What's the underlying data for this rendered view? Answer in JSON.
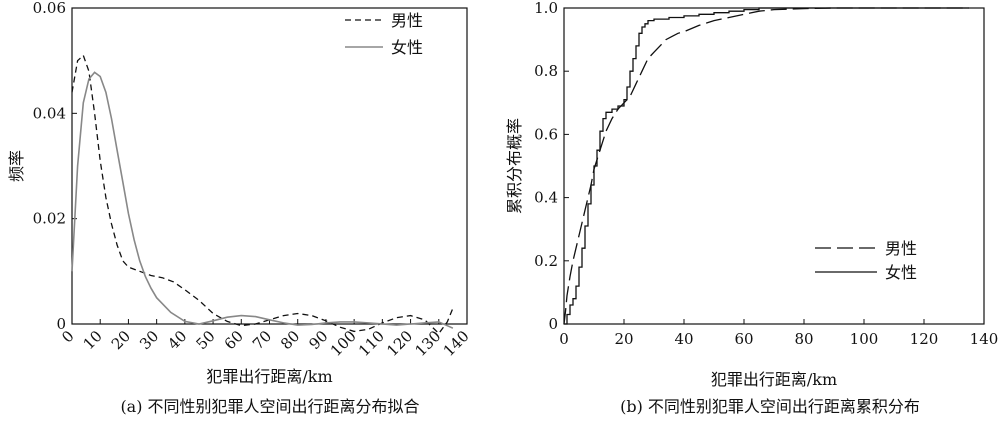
{
  "chart_data": [
    {
      "type": "line",
      "caption": "(a) 不同性别犯罪人空间出行距离分布拟合",
      "xlabel": "犯罪出行距离/km",
      "ylabel": "频率",
      "xlim": [
        0,
        140
      ],
      "ylim": [
        0,
        0.06
      ],
      "x_ticks": [
        "0",
        "10",
        "20",
        "30",
        "40",
        "50",
        "60",
        "70",
        "80",
        "90",
        "100",
        "110",
        "120",
        "130",
        "140"
      ],
      "y_ticks": [
        "0",
        "0.02",
        "0.04",
        "0.06"
      ],
      "grid": false,
      "legend_position": "top-right",
      "series": [
        {
          "name": "男性",
          "style": "dashed",
          "color": "#111111",
          "points": [
            [
              0,
              0.044
            ],
            [
              2,
              0.05
            ],
            [
              4,
              0.051
            ],
            [
              6,
              0.048
            ],
            [
              8,
              0.04
            ],
            [
              10,
              0.031
            ],
            [
              12,
              0.024
            ],
            [
              14,
              0.019
            ],
            [
              16,
              0.015
            ],
            [
              18,
              0.012
            ],
            [
              20,
              0.0108
            ],
            [
              24,
              0.01
            ],
            [
              28,
              0.0092
            ],
            [
              32,
              0.0088
            ],
            [
              36,
              0.008
            ],
            [
              40,
              0.0065
            ],
            [
              45,
              0.0045
            ],
            [
              50,
              0.002
            ],
            [
              55,
              0.0005
            ],
            [
              60,
              -0.0003
            ],
            [
              65,
              0.0
            ],
            [
              70,
              0.0008
            ],
            [
              75,
              0.0016
            ],
            [
              80,
              0.002
            ],
            [
              85,
              0.0016
            ],
            [
              90,
              0.0006
            ],
            [
              95,
              -0.0006
            ],
            [
              100,
              -0.0014
            ],
            [
              105,
              -0.001
            ],
            [
              110,
              0.0002
            ],
            [
              115,
              0.0012
            ],
            [
              120,
              0.0016
            ],
            [
              125,
              0.0008
            ],
            [
              130,
              -0.0018
            ],
            [
              133,
              0.0004
            ],
            [
              135,
              0.003
            ]
          ]
        },
        {
          "name": "女性",
          "style": "solid",
          "color": "#888888",
          "points": [
            [
              0,
              0.01
            ],
            [
              2,
              0.03
            ],
            [
              4,
              0.042
            ],
            [
              6,
              0.0465
            ],
            [
              8,
              0.0478
            ],
            [
              10,
              0.047
            ],
            [
              12,
              0.044
            ],
            [
              14,
              0.039
            ],
            [
              16,
              0.033
            ],
            [
              18,
              0.027
            ],
            [
              20,
              0.021
            ],
            [
              22,
              0.016
            ],
            [
              24,
              0.012
            ],
            [
              26,
              0.009
            ],
            [
              28,
              0.0068
            ],
            [
              30,
              0.005
            ],
            [
              35,
              0.0022
            ],
            [
              40,
              0.0005
            ],
            [
              45,
              0.0
            ],
            [
              50,
              0.0006
            ],
            [
              55,
              0.0013
            ],
            [
              60,
              0.0016
            ],
            [
              65,
              0.0014
            ],
            [
              70,
              0.0008
            ],
            [
              75,
              0.0002
            ],
            [
              80,
              -0.0002
            ],
            [
              85,
              -0.0001
            ],
            [
              90,
              0.0002
            ],
            [
              95,
              0.0004
            ],
            [
              100,
              0.0004
            ],
            [
              105,
              0.0002
            ],
            [
              110,
              0.0
            ],
            [
              115,
              -0.0002
            ],
            [
              120,
              0.0
            ],
            [
              125,
              0.0002
            ],
            [
              130,
              0.0004
            ],
            [
              135,
              -0.0008
            ]
          ]
        }
      ]
    },
    {
      "type": "line",
      "caption": "(b) 不同性别犯罪人空间出行距离累积分布",
      "xlabel": "犯罪出行距离/km",
      "ylabel": "累积分布概率",
      "xlim": [
        0,
        140
      ],
      "ylim": [
        0,
        1.0
      ],
      "x_ticks": [
        "0",
        "20",
        "40",
        "60",
        "80",
        "100",
        "120",
        "140"
      ],
      "y_ticks": [
        "0",
        "0.2",
        "0.4",
        "0.6",
        "0.8",
        "1.0"
      ],
      "grid": false,
      "legend_position": "bottom-right",
      "series": [
        {
          "name": "男性",
          "style": "long-dashed",
          "color": "#111111",
          "points": [
            [
              0,
              0.0
            ],
            [
              0.5,
              0.04
            ],
            [
              1,
              0.09
            ],
            [
              2,
              0.15
            ],
            [
              3,
              0.2
            ],
            [
              4,
              0.24
            ],
            [
              5,
              0.28
            ],
            [
              6,
              0.32
            ],
            [
              7,
              0.36
            ],
            [
              8,
              0.4
            ],
            [
              9,
              0.44
            ],
            [
              10,
              0.49
            ],
            [
              12,
              0.55
            ],
            [
              14,
              0.61
            ],
            [
              16,
              0.65
            ],
            [
              18,
              0.68
            ],
            [
              20,
              0.7
            ],
            [
              22,
              0.72
            ],
            [
              24,
              0.76
            ],
            [
              26,
              0.8
            ],
            [
              28,
              0.84
            ],
            [
              30,
              0.86
            ],
            [
              32,
              0.88
            ],
            [
              34,
              0.9
            ],
            [
              36,
              0.91
            ],
            [
              38,
              0.92
            ],
            [
              40,
              0.925
            ],
            [
              45,
              0.945
            ],
            [
              50,
              0.96
            ],
            [
              55,
              0.97
            ],
            [
              60,
              0.98
            ],
            [
              65,
              0.99
            ],
            [
              70,
              0.995
            ],
            [
              80,
              0.998
            ],
            [
              90,
              1.0
            ],
            [
              100,
              1.0
            ],
            [
              120,
              1.0
            ],
            [
              135,
              1.0
            ]
          ]
        },
        {
          "name": "女性",
          "style": "solid-step",
          "color": "#111111",
          "points": [
            [
              0,
              0.0
            ],
            [
              1,
              0.03
            ],
            [
              2,
              0.06
            ],
            [
              3,
              0.08
            ],
            [
              4,
              0.12
            ],
            [
              5,
              0.18
            ],
            [
              6,
              0.24
            ],
            [
              7,
              0.31
            ],
            [
              8,
              0.38
            ],
            [
              9,
              0.44
            ],
            [
              10,
              0.5
            ],
            [
              11,
              0.55
            ],
            [
              12,
              0.61
            ],
            [
              13,
              0.65
            ],
            [
              14,
              0.67
            ],
            [
              16,
              0.68
            ],
            [
              18,
              0.69
            ],
            [
              20,
              0.71
            ],
            [
              21,
              0.75
            ],
            [
              22,
              0.8
            ],
            [
              23,
              0.84
            ],
            [
              24,
              0.88
            ],
            [
              25,
              0.92
            ],
            [
              26,
              0.94
            ],
            [
              27,
              0.95
            ],
            [
              28,
              0.96
            ],
            [
              30,
              0.965
            ],
            [
              35,
              0.97
            ],
            [
              40,
              0.975
            ],
            [
              45,
              0.98
            ],
            [
              50,
              0.985
            ],
            [
              55,
              0.99
            ],
            [
              60,
              0.995
            ],
            [
              65,
              1.0
            ],
            [
              80,
              1.0
            ],
            [
              100,
              1.0
            ],
            [
              135,
              1.0
            ]
          ]
        }
      ]
    }
  ]
}
